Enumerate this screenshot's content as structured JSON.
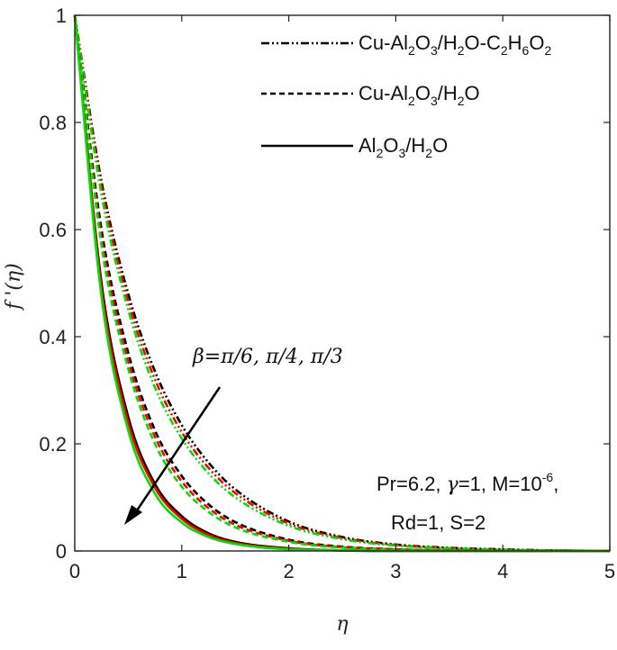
{
  "chart_data": {
    "type": "line",
    "xlabel": "η",
    "ylabel": "f '(η)",
    "xlim": [
      0,
      5
    ],
    "ylim": [
      0,
      1
    ],
    "xticks": [
      0,
      1,
      2,
      3,
      4,
      5
    ],
    "yticks": [
      0,
      0.2,
      0.4,
      0.6,
      0.8,
      1
    ],
    "xtick_labels": [
      "0",
      "1",
      "2",
      "3",
      "4",
      "5"
    ],
    "ytick_labels": [
      "0",
      "0.2",
      "0.4",
      "0.6",
      "0.8",
      "1"
    ],
    "grid": false,
    "legend": {
      "placement": "top-right",
      "entries": [
        {
          "style": "dashdot",
          "label": "Cu-Al2O3/H2O-C2H6O2"
        },
        {
          "style": "dashed",
          "label": "Cu-Al2O3/H2O"
        },
        {
          "style": "solid",
          "label": "Al2O3/H2O"
        }
      ]
    },
    "annotations": {
      "beta_text": "β=π/6, π/4, π/3",
      "params_line1": "Pr=6.2, γ=1, M=10-6,",
      "params_line2": "Rd=1, S=2"
    },
    "colors": {
      "beta_pi_6": "#000000",
      "beta_pi_4": "#ff0000",
      "beta_pi_3": "#00e000"
    },
    "x": [
      0,
      0.25,
      0.5,
      0.75,
      1.0,
      1.25,
      1.5,
      2.0,
      2.5,
      3.0,
      3.5,
      4.0,
      4.5,
      5.0
    ],
    "series": [
      {
        "group": "Cu-Al2O3/H2O-C2H6O2",
        "beta": "π/6",
        "style": "dashdot",
        "color": "#000000",
        "values": [
          1.0,
          0.69,
          0.48,
          0.335,
          0.235,
          0.165,
          0.115,
          0.055,
          0.026,
          0.012,
          0.006,
          0.003,
          0.001,
          0.0
        ]
      },
      {
        "group": "Cu-Al2O3/H2O-C2H6O2",
        "beta": "π/4",
        "style": "dashdot",
        "color": "#ff0000",
        "values": [
          1.0,
          0.68,
          0.465,
          0.32,
          0.222,
          0.155,
          0.108,
          0.051,
          0.024,
          0.011,
          0.005,
          0.002,
          0.001,
          0.0
        ]
      },
      {
        "group": "Cu-Al2O3/H2O-C2H6O2",
        "beta": "π/3",
        "style": "dashdot",
        "color": "#00e000",
        "values": [
          1.0,
          0.665,
          0.45,
          0.305,
          0.21,
          0.145,
          0.1,
          0.047,
          0.022,
          0.01,
          0.005,
          0.002,
          0.001,
          0.0
        ]
      },
      {
        "group": "Cu-Al2O3/H2O",
        "beta": "π/6",
        "style": "dashed",
        "color": "#000000",
        "values": [
          1.0,
          0.6,
          0.37,
          0.225,
          0.14,
          0.087,
          0.054,
          0.021,
          0.008,
          0.003,
          0.001,
          0.0,
          0.0,
          0.0
        ]
      },
      {
        "group": "Cu-Al2O3/H2O",
        "beta": "π/4",
        "style": "dashed",
        "color": "#ff0000",
        "values": [
          1.0,
          0.585,
          0.355,
          0.213,
          0.13,
          0.08,
          0.049,
          0.019,
          0.007,
          0.003,
          0.001,
          0.0,
          0.0,
          0.0
        ]
      },
      {
        "group": "Cu-Al2O3/H2O",
        "beta": "π/3",
        "style": "dashed",
        "color": "#00e000",
        "values": [
          1.0,
          0.57,
          0.34,
          0.2,
          0.12,
          0.073,
          0.044,
          0.017,
          0.006,
          0.002,
          0.001,
          0.0,
          0.0,
          0.0
        ]
      },
      {
        "group": "Al2O3/H2O",
        "beta": "π/6",
        "style": "solid",
        "color": "#000000",
        "values": [
          1.0,
          0.5,
          0.25,
          0.125,
          0.065,
          0.033,
          0.017,
          0.005,
          0.001,
          0.0,
          0.0,
          0.0,
          0.0,
          0.0
        ]
      },
      {
        "group": "Al2O3/H2O",
        "beta": "π/4",
        "style": "solid",
        "color": "#ff0000",
        "values": [
          1.0,
          0.49,
          0.24,
          0.118,
          0.06,
          0.03,
          0.015,
          0.004,
          0.001,
          0.0,
          0.0,
          0.0,
          0.0,
          0.0
        ]
      },
      {
        "group": "Al2O3/H2O",
        "beta": "π/3",
        "style": "solid",
        "color": "#00e000",
        "values": [
          1.0,
          0.475,
          0.225,
          0.107,
          0.053,
          0.026,
          0.013,
          0.003,
          0.001,
          0.0,
          0.0,
          0.0,
          0.0,
          0.0
        ]
      }
    ]
  }
}
